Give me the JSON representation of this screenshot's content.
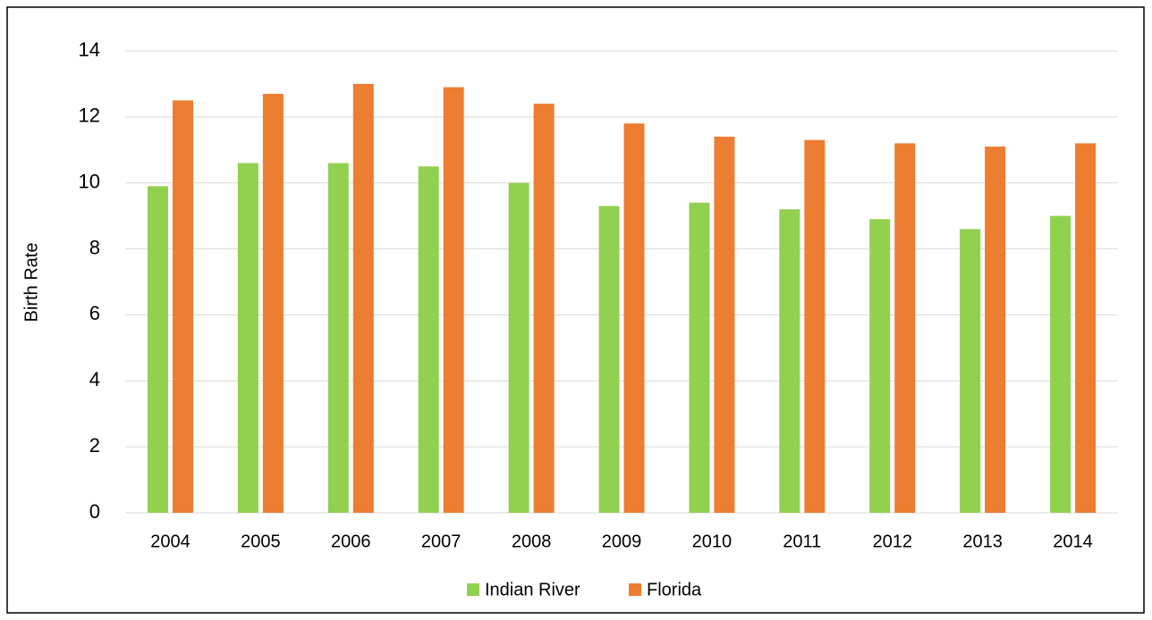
{
  "chart_data": {
    "type": "bar",
    "y_label": "Birth Rate",
    "categories": [
      "2004",
      "2005",
      "2006",
      "2007",
      "2008",
      "2009",
      "2010",
      "2011",
      "2012",
      "2013",
      "2014"
    ],
    "series": [
      {
        "name": "Indian River",
        "color": "#92d050",
        "values": [
          9.9,
          10.6,
          10.6,
          10.5,
          10.0,
          9.3,
          9.4,
          9.2,
          8.9,
          8.6,
          9.0
        ]
      },
      {
        "name": "Florida",
        "color": "#ed7d31",
        "values": [
          12.5,
          12.7,
          13.0,
          12.9,
          12.4,
          11.8,
          11.4,
          11.3,
          11.2,
          11.1,
          11.2
        ]
      }
    ],
    "ylim": [
      0,
      14
    ],
    "yticks": [
      0,
      2,
      4,
      6,
      8,
      10,
      12,
      14
    ],
    "grid": true,
    "legend": "bottom"
  }
}
